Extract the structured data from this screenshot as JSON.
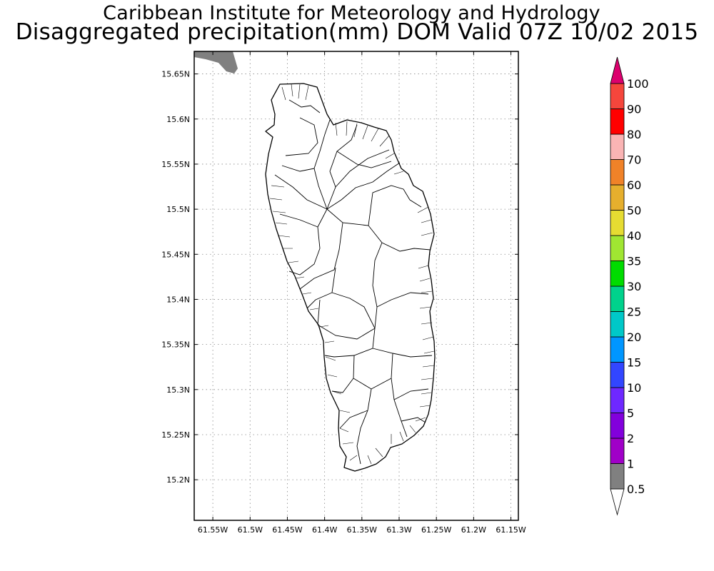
{
  "title": "Caribbean Institute for Meteorology and Hydrology",
  "subtitle": "Disaggregated precipitation(mm) DOM Valid 07Z 10/02 2015",
  "map": {
    "lon_range": [
      -61.575,
      -61.14
    ],
    "lat_range": [
      15.155,
      15.675
    ],
    "lon_ticks": [
      -61.55,
      -61.5,
      -61.45,
      -61.4,
      -61.35,
      -61.3,
      -61.25,
      -61.2,
      -61.15
    ],
    "lon_tick_labels": [
      "61.55W",
      "61.5W",
      "61.45W",
      "61.4W",
      "61.35W",
      "61.3W",
      "61.25W",
      "61.2W",
      "61.15W"
    ],
    "lat_ticks": [
      15.2,
      15.25,
      15.3,
      15.35,
      15.4,
      15.45,
      15.5,
      15.55,
      15.6,
      15.65
    ],
    "lat_tick_labels": [
      "15.2N",
      "15.25N",
      "15.3N",
      "15.35N",
      "15.4N",
      "15.45N",
      "15.5N",
      "15.55N",
      "15.6N",
      "15.65N"
    ],
    "grid": "dotted",
    "land_fill": "#ffffff",
    "boundary_color": "#000000",
    "precip_patch_color": "#808080"
  },
  "legend": {
    "placement": "right",
    "labels": [
      "0.5",
      "1",
      "2",
      "5",
      "10",
      "15",
      "20",
      "25",
      "30",
      "35",
      "40",
      "50",
      "60",
      "70",
      "80",
      "90",
      "100"
    ],
    "colors": [
      "#808080",
      "#a000c8",
      "#8200dc",
      "#6e28ff",
      "#3246ff",
      "#0096ff",
      "#00c8c8",
      "#00d28c",
      "#00dc00",
      "#a0e632",
      "#e6dc32",
      "#e6af2d",
      "#f08228",
      "#fab4b4",
      "#ff0000",
      "#f5463c",
      "#dc006e"
    ],
    "below_color": "#ffffff",
    "above_color": "#dc006e"
  }
}
